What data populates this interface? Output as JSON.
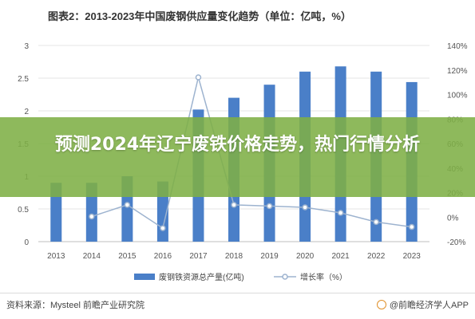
{
  "header": {
    "title": "图表2：2013-2023年中国废钢供应量变化趋势（单位：亿吨，%）"
  },
  "overlay": {
    "text": "预测2024年辽宁废铁价格走势，热门行情分析"
  },
  "footer": {
    "source": "资料来源：Mysteel 前瞻产业研究院",
    "credit": "@前瞻经济学人APP"
  },
  "chart_data": {
    "type": "bar",
    "categories": [
      "2013",
      "2014",
      "2015",
      "2016",
      "2017",
      "2018",
      "2019",
      "2020",
      "2021",
      "2022",
      "2023"
    ],
    "series": [
      {
        "name": "废钢铁资源总产量(亿吨)",
        "type": "bar",
        "axis": "left",
        "color": "#4a7fc8",
        "values": [
          0.9,
          0.9,
          1.0,
          0.92,
          2.02,
          2.2,
          2.4,
          2.6,
          2.68,
          2.6,
          2.44
        ]
      },
      {
        "name": "增长率（%）",
        "type": "line",
        "axis": "right",
        "color": "#9db3cf",
        "values": [
          null,
          0.5,
          10,
          -9,
          114,
          10,
          9,
          8,
          3.5,
          -4,
          -8
        ]
      }
    ],
    "y_left": {
      "min": 0,
      "max": 3,
      "ticks": [
        "0",
        "0.5",
        "1",
        "1.5",
        "2",
        "2.5",
        "3"
      ]
    },
    "y_right": {
      "min": -20,
      "max": 140,
      "ticks": [
        "-20%",
        "0%",
        "20%",
        "40%",
        "60%",
        "80%",
        "100%",
        "120%",
        "140%"
      ]
    },
    "grid": true,
    "legend_position": "bottom"
  }
}
